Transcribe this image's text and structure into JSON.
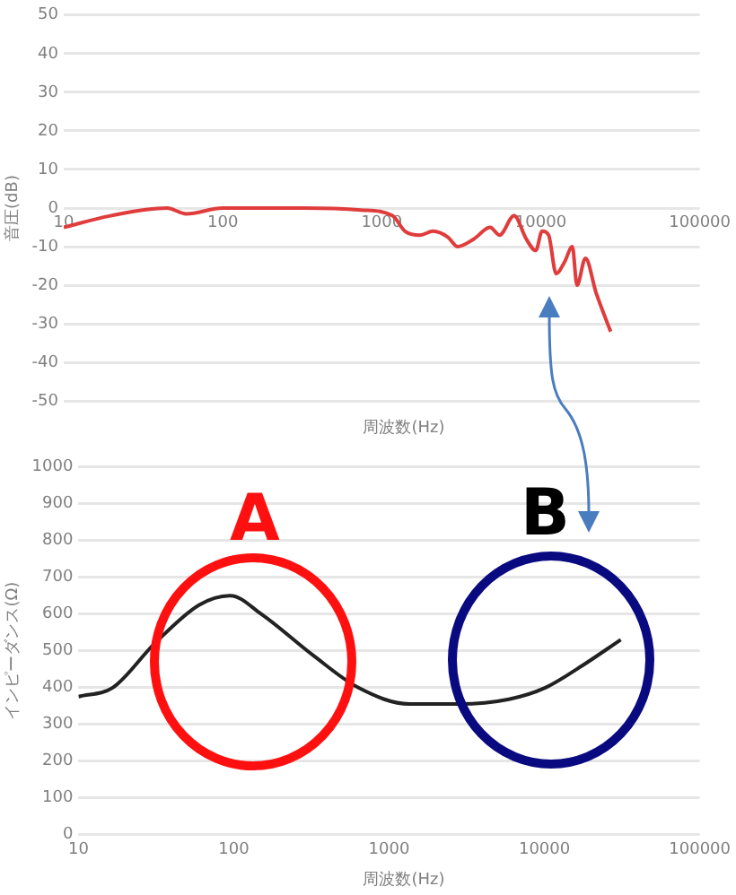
{
  "chart_data": [
    {
      "type": "line",
      "ylabel": "音圧(dB)",
      "xlabel": "周波数(Hz)",
      "log": "x",
      "grid": "y",
      "legend": false,
      "marker": "none",
      "line_style": "solid",
      "xlim": [
        10,
        100000
      ],
      "xticks": [
        10,
        100,
        1000,
        10000,
        100000
      ],
      "ylim": [
        -50,
        50
      ],
      "yticks": [
        -50,
        -40,
        -30,
        -20,
        -10,
        0,
        10,
        20,
        30,
        40,
        50
      ],
      "series": [
        {
          "color": "#e03c3c",
          "x": [
            10,
            19.7,
            44.6,
            59,
            100,
            330,
            740,
            1170,
            1400,
            1740,
            2100,
            2600,
            3000,
            3800,
            4800,
            5500,
            6800,
            8100,
            9300,
            10200,
            11200,
            12500,
            14100,
            15800,
            16900,
            19100,
            22300,
            27500
          ],
          "values": [
            -5,
            -2,
            0,
            -1.5,
            0,
            0,
            -0.5,
            -2,
            -6,
            -7,
            -6,
            -7.5,
            -10,
            -8,
            -5,
            -7,
            -2,
            -8,
            -11,
            -6,
            -7,
            -17,
            -14,
            -10,
            -20,
            -13,
            -22,
            -32
          ]
        }
      ]
    },
    {
      "type": "line",
      "ylabel": "インピーダンス(Ω)",
      "xlabel": "周波数(Hz)",
      "log": "x",
      "grid": "y",
      "legend": false,
      "marker": "none",
      "line_style": "solid",
      "xlim": [
        10,
        100000
      ],
      "xticks": [
        10,
        100,
        1000,
        10000,
        100000
      ],
      "ylim": [
        0,
        1000
      ],
      "yticks": [
        0,
        100,
        200,
        300,
        400,
        500,
        600,
        700,
        800,
        900,
        1000
      ],
      "annotations": [
        "A",
        "B"
      ],
      "series": [
        {
          "color": "#222222",
          "x": [
            10,
            16.7,
            31,
            60,
            95,
            150,
            325,
            630,
            1350,
            2800,
            5900,
            10200,
            17600,
            31000
          ],
          "values": [
            375,
            400,
            520,
            625,
            650,
            600,
            487,
            400,
            355,
            355,
            368,
            400,
            460,
            530
          ]
        }
      ]
    }
  ]
}
